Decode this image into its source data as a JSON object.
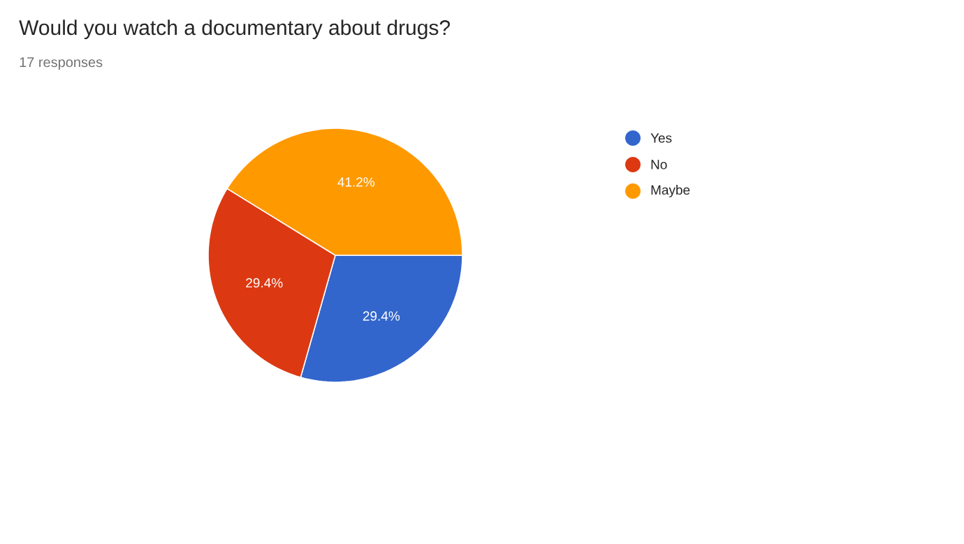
{
  "chart_data": {
    "type": "pie",
    "title": "Would you watch a documentary about drugs?",
    "subtitle": "17 responses",
    "categories": [
      "Yes",
      "No",
      "Maybe"
    ],
    "values": [
      29.4,
      29.4,
      41.2
    ],
    "colors": [
      "#3366cc",
      "#dc3912",
      "#ff9900"
    ],
    "value_labels": [
      "29.4%",
      "29.4%",
      "41.2%"
    ],
    "legend": "right"
  }
}
